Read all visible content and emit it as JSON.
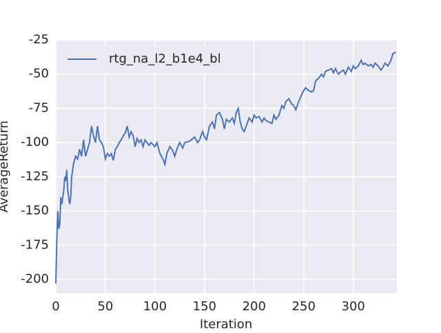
{
  "chart_data": {
    "type": "line",
    "xlabel": "Iteration",
    "ylabel": "AverageReturn",
    "x": [
      0,
      1,
      2,
      3,
      4,
      5,
      6,
      8,
      9,
      10,
      11,
      12,
      14,
      15,
      16,
      18,
      20,
      22,
      24,
      26,
      28,
      30,
      32,
      34,
      36,
      38,
      40,
      42,
      44,
      46,
      48,
      50,
      52,
      54,
      56,
      58,
      60,
      62,
      64,
      66,
      68,
      70,
      72,
      74,
      76,
      78,
      80,
      82,
      84,
      86,
      88,
      90,
      92,
      94,
      96,
      100,
      102,
      105,
      108,
      110,
      112,
      115,
      118,
      120,
      122,
      125,
      128,
      130,
      135,
      140,
      143,
      145,
      148,
      150,
      152,
      155,
      158,
      160,
      162,
      165,
      168,
      170,
      172,
      175,
      178,
      180,
      182,
      184,
      186,
      188,
      190,
      192,
      195,
      198,
      200,
      202,
      205,
      208,
      210,
      212,
      215,
      218,
      220,
      222,
      225,
      228,
      230,
      232,
      235,
      238,
      240,
      242,
      245,
      248,
      250,
      252,
      255,
      258,
      260,
      262,
      265,
      268,
      270,
      272,
      275,
      278,
      280,
      282,
      285,
      288,
      290,
      292,
      295,
      298,
      300,
      302,
      305,
      308,
      310,
      312,
      315,
      318,
      320,
      322,
      325,
      328,
      330,
      332,
      335,
      338,
      340,
      343
    ],
    "series": [
      {
        "name": "rtg_na_l2_b1e4_bl",
        "color": "#4c72b0",
        "values": [
          -203,
          -170,
          -150,
          -163,
          -160,
          -140,
          -145,
          -135,
          -125,
          -128,
          -120,
          -135,
          -145,
          -140,
          -125,
          -115,
          -110,
          -112,
          -105,
          -110,
          -98,
          -110,
          -105,
          -100,
          -88,
          -95,
          -100,
          -88,
          -98,
          -100,
          -103,
          -112,
          -108,
          -110,
          -108,
          -113,
          -105,
          -103,
          -100,
          -98,
          -95,
          -93,
          -88,
          -96,
          -92,
          -95,
          -103,
          -97,
          -100,
          -98,
          -103,
          -98,
          -100,
          -102,
          -100,
          -103,
          -100,
          -108,
          -112,
          -116,
          -108,
          -103,
          -106,
          -110,
          -105,
          -100,
          -104,
          -100,
          -99,
          -96,
          -100,
          -98,
          -92,
          -96,
          -98,
          -88,
          -85,
          -90,
          -80,
          -78,
          -83,
          -90,
          -83,
          -85,
          -82,
          -86,
          -78,
          -75,
          -85,
          -90,
          -92,
          -88,
          -82,
          -85,
          -80,
          -82,
          -81,
          -85,
          -82,
          -84,
          -85,
          -86,
          -80,
          -83,
          -80,
          -73,
          -75,
          -70,
          -68,
          -72,
          -73,
          -76,
          -70,
          -65,
          -62,
          -60,
          -62,
          -63,
          -62,
          -55,
          -53,
          -50,
          -52,
          -48,
          -47,
          -46,
          -49,
          -46,
          -50,
          -48,
          -47,
          -50,
          -45,
          -48,
          -44,
          -46,
          -44,
          -40,
          -43,
          -42,
          -44,
          -43,
          -45,
          -42,
          -44,
          -47,
          -45,
          -42,
          -44,
          -40,
          -35,
          -34
        ]
      }
    ],
    "xlim": [
      0,
      344
    ],
    "xticks": [
      0,
      50,
      100,
      150,
      200,
      250,
      300
    ],
    "ylim": [
      -210,
      -25
    ],
    "yticks": [
      -25,
      -50,
      -75,
      -100,
      -125,
      -150,
      -175,
      -200
    ],
    "grid": true,
    "legend": "upper-left"
  }
}
